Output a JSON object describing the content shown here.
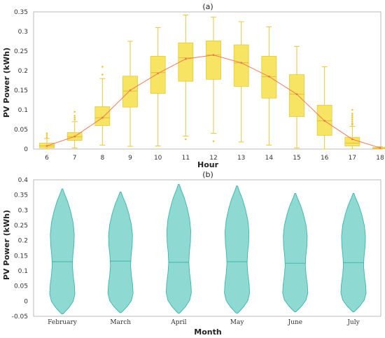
{
  "chart_data": [
    {
      "panel_label": "(a)",
      "type": "box",
      "xlabel": "Hour",
      "ylabel": "PV Power (kWh)",
      "ylim": [
        0,
        0.35
      ],
      "yticks": [
        0,
        0.05,
        0.1,
        0.15,
        0.2,
        0.25,
        0.3,
        0.35
      ],
      "ytick_labels": [
        "0",
        "0.05",
        "0.1",
        "0.15",
        "0.2",
        "0.25",
        "0.3",
        "0.35"
      ],
      "categories": [
        "6",
        "7",
        "8",
        "9",
        "10",
        "11",
        "12",
        "13",
        "14",
        "15",
        "16",
        "17",
        "18"
      ],
      "box_color": "#f7e463",
      "box_edge": "#e6c83a",
      "mean_line_color": "#ef7a58",
      "boxes": [
        {
          "whisker_low": 0.0,
          "q1": 0.003,
          "median": 0.008,
          "q3": 0.015,
          "whisker_high": 0.027
        },
        {
          "whisker_low": 0.003,
          "q1": 0.022,
          "median": 0.031,
          "q3": 0.042,
          "whisker_high": 0.07
        },
        {
          "whisker_low": 0.01,
          "q1": 0.06,
          "median": 0.08,
          "q3": 0.108,
          "whisker_high": 0.18
        },
        {
          "whisker_low": 0.007,
          "q1": 0.107,
          "median": 0.148,
          "q3": 0.186,
          "whisker_high": 0.275
        },
        {
          "whisker_low": 0.008,
          "q1": 0.142,
          "median": 0.195,
          "q3": 0.237,
          "whisker_high": 0.31
        },
        {
          "whisker_low": 0.033,
          "q1": 0.173,
          "median": 0.233,
          "q3": 0.271,
          "whisker_high": 0.342
        },
        {
          "whisker_low": 0.04,
          "q1": 0.178,
          "median": 0.24,
          "q3": 0.276,
          "whisker_high": 0.337
        },
        {
          "whisker_low": 0.018,
          "q1": 0.16,
          "median": 0.22,
          "q3": 0.266,
          "whisker_high": 0.325
        },
        {
          "whisker_low": 0.01,
          "q1": 0.13,
          "median": 0.185,
          "q3": 0.237,
          "whisker_high": 0.312
        },
        {
          "whisker_low": 0.003,
          "q1": 0.083,
          "median": 0.14,
          "q3": 0.19,
          "whisker_high": 0.262
        },
        {
          "whisker_low": 0.0,
          "q1": 0.035,
          "median": 0.072,
          "q3": 0.112,
          "whisker_high": 0.21
        },
        {
          "whisker_low": 0.0,
          "q1": 0.008,
          "median": 0.015,
          "q3": 0.03,
          "whisker_high": 0.058
        },
        {
          "whisker_low": 0.0,
          "q1": 0.001,
          "median": 0.002,
          "q3": 0.004,
          "whisker_high": 0.006
        }
      ],
      "means": [
        0.008,
        0.032,
        0.08,
        0.15,
        0.193,
        0.23,
        0.24,
        0.22,
        0.185,
        0.14,
        0.072,
        0.025,
        0.003
      ],
      "outliers": [
        [
          0.04,
          0.035,
          0.03
        ],
        [
          0.095,
          0.085,
          0.08,
          0.075
        ],
        [
          0.21,
          0.19
        ],
        [],
        [],
        [
          0.025
        ],
        [
          0.02
        ],
        [],
        [],
        [],
        [],
        [
          0.1,
          0.09,
          0.085,
          0.08,
          0.075,
          0.07,
          0.065,
          0.062
        ],
        []
      ]
    },
    {
      "panel_label": "(b)",
      "type": "violin",
      "xlabel": "Month",
      "ylabel": "PV Power (kWh)",
      "ylim": [
        -0.05,
        0.4
      ],
      "yticks": [
        -0.05,
        0,
        0.05,
        0.1,
        0.15,
        0.2,
        0.25,
        0.3,
        0.35,
        0.4
      ],
      "ytick_labels": [
        "-0.05",
        "0",
        "0.05",
        "0.1",
        "0.15",
        "0.2",
        "0.25",
        "0.3",
        "0.35",
        "0.4"
      ],
      "categories": [
        "February",
        "March",
        "April",
        "May",
        "June",
        "July"
      ],
      "violin_color": "#8fd9d3",
      "violin_edge": "#3cb5aa",
      "violins": [
        {
          "min": -0.042,
          "max": 0.37,
          "mean": 0.13
        },
        {
          "min": -0.038,
          "max": 0.36,
          "mean": 0.132
        },
        {
          "min": -0.04,
          "max": 0.385,
          "mean": 0.128
        },
        {
          "min": -0.04,
          "max": 0.38,
          "mean": 0.13
        },
        {
          "min": -0.035,
          "max": 0.355,
          "mean": 0.125
        },
        {
          "min": -0.035,
          "max": 0.355,
          "mean": 0.127
        }
      ]
    }
  ]
}
